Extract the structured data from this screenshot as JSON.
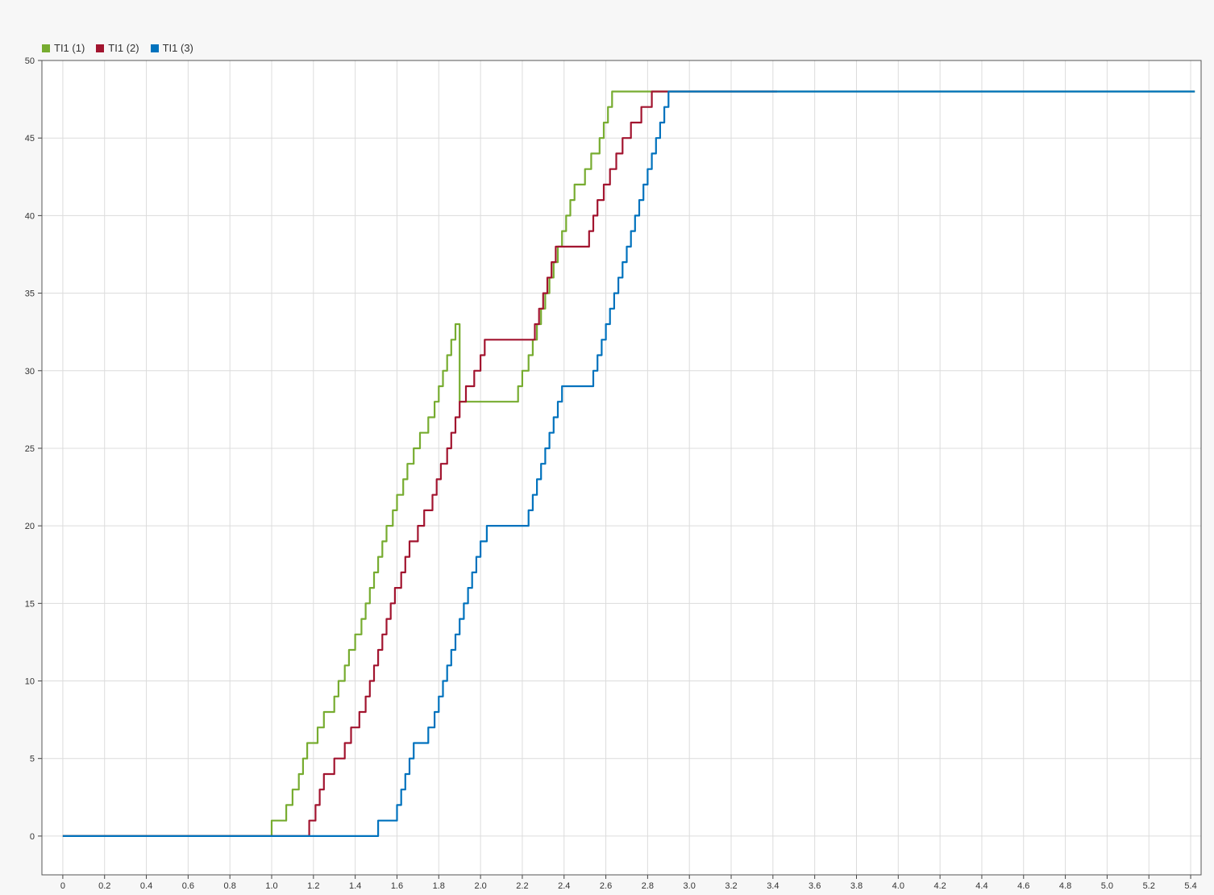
{
  "chart_data": {
    "type": "line",
    "title": "",
    "xlabel": "",
    "ylabel": "",
    "xlim": [
      -0.1,
      5.45
    ],
    "ylim": [
      -2.5,
      50
    ],
    "x_ticks": [
      "0",
      "0.2",
      "0.4",
      "0.6",
      "0.8",
      "1.0",
      "1.2",
      "1.4",
      "1.6",
      "1.8",
      "2.0",
      "2.2",
      "2.4",
      "2.6",
      "2.8",
      "3.0",
      "3.2",
      "3.4",
      "3.6",
      "3.8",
      "4.0",
      "4.2",
      "4.4",
      "4.6",
      "4.8",
      "5.0",
      "5.2",
      "5.4"
    ],
    "y_ticks": [
      "0",
      "5",
      "10",
      "15",
      "20",
      "25",
      "30",
      "35",
      "40",
      "45",
      "50"
    ],
    "grid": true,
    "legend_position": "top-left",
    "step": true,
    "series": [
      {
        "name": "TI1 (1)",
        "color": "#77ac30",
        "x": [
          0,
          1.0,
          1.07,
          1.1,
          1.13,
          1.15,
          1.17,
          1.22,
          1.25,
          1.3,
          1.32,
          1.35,
          1.37,
          1.4,
          1.43,
          1.45,
          1.47,
          1.49,
          1.51,
          1.53,
          1.55,
          1.58,
          1.6,
          1.63,
          1.65,
          1.68,
          1.71,
          1.75,
          1.78,
          1.8,
          1.82,
          1.84,
          1.86,
          1.88,
          1.9,
          2.18,
          2.2,
          2.23,
          2.25,
          2.27,
          2.29,
          2.31,
          2.33,
          2.35,
          2.37,
          2.39,
          2.41,
          2.43,
          2.45,
          2.5,
          2.53,
          2.57,
          2.59,
          2.61,
          2.63,
          2.65,
          2.68,
          2.72,
          2.77,
          2.82,
          2.86,
          3.42,
          5.42
        ],
        "values": [
          0,
          1,
          2,
          3,
          4,
          5,
          6,
          7,
          8,
          9,
          10,
          11,
          12,
          13,
          14,
          15,
          16,
          17,
          18,
          19,
          20,
          21,
          22,
          23,
          24,
          25,
          26,
          27,
          28,
          29,
          30,
          31,
          32,
          33,
          28,
          29,
          30,
          31,
          32,
          33,
          34,
          35,
          36,
          37,
          38,
          39,
          40,
          41,
          42,
          43,
          44,
          45,
          46,
          47,
          48,
          48,
          48,
          48,
          48,
          48,
          48,
          48,
          48
        ]
      },
      {
        "name": "TI1 (2)",
        "color": "#a2142f",
        "x": [
          0,
          1.18,
          1.21,
          1.23,
          1.25,
          1.3,
          1.35,
          1.38,
          1.42,
          1.45,
          1.47,
          1.49,
          1.51,
          1.53,
          1.55,
          1.57,
          1.59,
          1.62,
          1.64,
          1.66,
          1.7,
          1.73,
          1.77,
          1.79,
          1.81,
          1.84,
          1.86,
          1.88,
          1.9,
          1.93,
          1.97,
          2.0,
          2.02,
          2.24,
          2.26,
          2.28,
          2.3,
          2.32,
          2.34,
          2.36,
          2.38,
          2.52,
          2.54,
          2.56,
          2.59,
          2.62,
          2.65,
          2.68,
          2.72,
          2.77,
          2.82,
          2.87,
          2.92,
          2.98,
          3.42
        ],
        "values": [
          0,
          1,
          2,
          3,
          4,
          5,
          6,
          7,
          8,
          9,
          10,
          11,
          12,
          13,
          14,
          15,
          16,
          17,
          18,
          19,
          20,
          21,
          22,
          23,
          24,
          25,
          26,
          27,
          28,
          29,
          30,
          31,
          32,
          32,
          33,
          34,
          35,
          36,
          37,
          38,
          38,
          39,
          40,
          41,
          42,
          43,
          44,
          45,
          46,
          47,
          48,
          48,
          48,
          48,
          48
        ]
      },
      {
        "name": "TI1 (3)",
        "color": "#0072bd",
        "x": [
          0,
          1.51,
          1.6,
          1.62,
          1.64,
          1.66,
          1.68,
          1.75,
          1.78,
          1.8,
          1.82,
          1.84,
          1.86,
          1.88,
          1.9,
          1.92,
          1.94,
          1.96,
          1.98,
          2.0,
          2.03,
          2.23,
          2.25,
          2.27,
          2.29,
          2.31,
          2.33,
          2.35,
          2.37,
          2.39,
          2.54,
          2.56,
          2.58,
          2.6,
          2.62,
          2.64,
          2.66,
          2.68,
          2.7,
          2.72,
          2.74,
          2.76,
          2.78,
          2.8,
          2.82,
          2.84,
          2.86,
          2.88,
          2.9,
          2.92,
          2.94,
          2.96,
          2.98,
          3.0,
          3.03,
          3.07,
          3.14,
          3.42,
          3.45,
          4.5,
          5.42
        ],
        "values": [
          0,
          1,
          2,
          3,
          4,
          5,
          6,
          7,
          8,
          9,
          10,
          11,
          12,
          13,
          14,
          15,
          16,
          17,
          18,
          19,
          20,
          21,
          22,
          23,
          24,
          25,
          26,
          27,
          28,
          29,
          30,
          31,
          32,
          33,
          34,
          35,
          36,
          37,
          38,
          39,
          40,
          41,
          42,
          43,
          44,
          45,
          46,
          47,
          48,
          48,
          48,
          48,
          48,
          48,
          48,
          48,
          48,
          48,
          48,
          48,
          48
        ]
      }
    ]
  }
}
